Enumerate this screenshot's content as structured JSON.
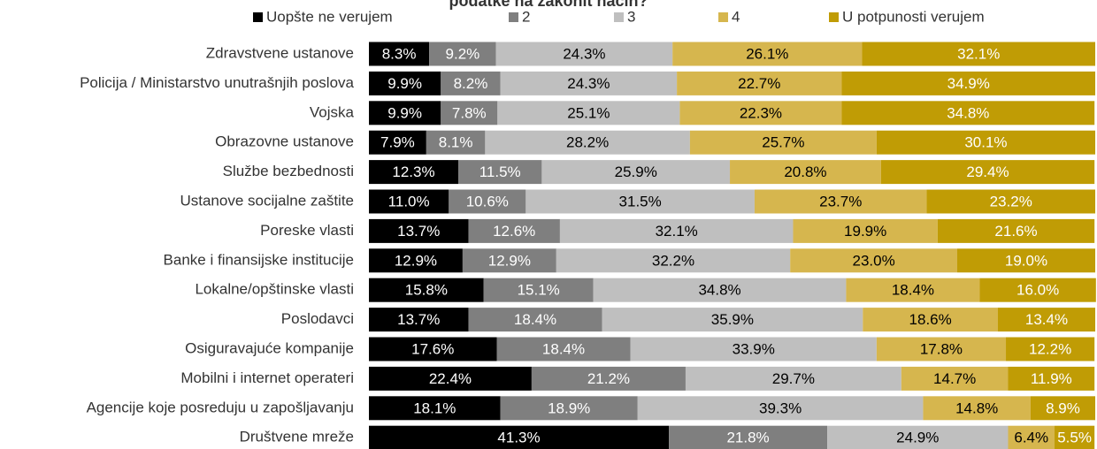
{
  "chart_data": {
    "type": "stacked-bar-horizontal",
    "title": "podatke na zakonit način?",
    "xlim": [
      0,
      100
    ],
    "categories": [
      "Zdravstvene ustanove",
      "Policija / Ministarstvo unutrašnjih poslova",
      "Vojska",
      "Obrazovne ustanove",
      "Službe bezbednosti",
      "Ustanove socijalne zaštite",
      "Poreske vlasti",
      "Banke i finansijske institucije",
      "Lokalne/opštinske vlasti",
      "Poslodavci",
      "Osiguravajuće kompanije",
      "Mobilni i internet operateri",
      "Agencije koje posreduju u zapošljavanju",
      "Društvene mreže"
    ],
    "series": [
      {
        "name": "Uopšte ne verujem",
        "color": "#000000",
        "label_color": "#ffffff",
        "values": [
          8.3,
          9.9,
          9.9,
          7.9,
          12.3,
          11.0,
          13.7,
          12.9,
          15.8,
          13.7,
          17.6,
          22.4,
          18.1,
          41.3
        ],
        "value_labels": [
          "8.3%",
          "9.9%",
          "9.9%",
          "7.9%",
          "12.3%",
          "11.0%",
          "13.7%",
          "12.9%",
          "15.8%",
          "13.7%",
          "17.6%",
          "22.4%",
          "18.1%",
          "41.3%"
        ]
      },
      {
        "name": "2",
        "color": "#7f7f7f",
        "label_color": "#ffffff",
        "values": [
          9.2,
          8.2,
          7.8,
          8.1,
          11.5,
          10.6,
          12.6,
          12.9,
          15.1,
          18.4,
          18.4,
          21.2,
          18.9,
          21.8
        ],
        "value_labels": [
          "9.2%",
          "8.2%",
          "7.8%",
          "8.1%",
          "11.5%",
          "10.6%",
          "12.6%",
          "12.9%",
          "15.1%",
          "18.4%",
          "18.4%",
          "21.2%",
          "18.9%",
          "21.8%"
        ]
      },
      {
        "name": "3",
        "color": "#bfbfbf",
        "label_color": "#000000",
        "values": [
          24.3,
          24.3,
          25.1,
          28.2,
          25.9,
          31.5,
          32.1,
          32.2,
          34.8,
          35.9,
          33.9,
          29.7,
          39.3,
          24.9
        ],
        "value_labels": [
          "24.3%",
          "24.3%",
          "25.1%",
          "28.2%",
          "25.9%",
          "31.5%",
          "32.1%",
          "32.2%",
          "34.8%",
          "35.9%",
          "33.9%",
          "29.7%",
          "39.3%",
          "24.9%"
        ]
      },
      {
        "name": "4",
        "color": "#d6b64e",
        "label_color": "#000000",
        "values": [
          26.1,
          22.7,
          22.3,
          25.7,
          20.8,
          23.7,
          19.9,
          23.0,
          18.4,
          18.6,
          17.8,
          14.7,
          14.8,
          6.4
        ],
        "value_labels": [
          "26.1%",
          "22.7%",
          "22.3%",
          "25.7%",
          "20.8%",
          "23.7%",
          "19.9%",
          "23.0%",
          "18.4%",
          "18.6%",
          "17.8%",
          "14.7%",
          "14.8%",
          "6.4%"
        ]
      },
      {
        "name": "U potpunosti verujem",
        "color": "#c09c05",
        "label_color": "#ffffff",
        "values": [
          32.1,
          34.9,
          34.8,
          30.1,
          29.4,
          23.2,
          21.6,
          19.0,
          16.0,
          13.4,
          12.2,
          11.9,
          8.9,
          5.5
        ],
        "value_labels": [
          "32.1%",
          "34.9%",
          "34.8%",
          "30.1%",
          "29.4%",
          "23.2%",
          "21.6%",
          "19.0%",
          "16.0%",
          "13.4%",
          "12.2%",
          "11.9%",
          "8.9%",
          "5.5%"
        ]
      }
    ]
  }
}
